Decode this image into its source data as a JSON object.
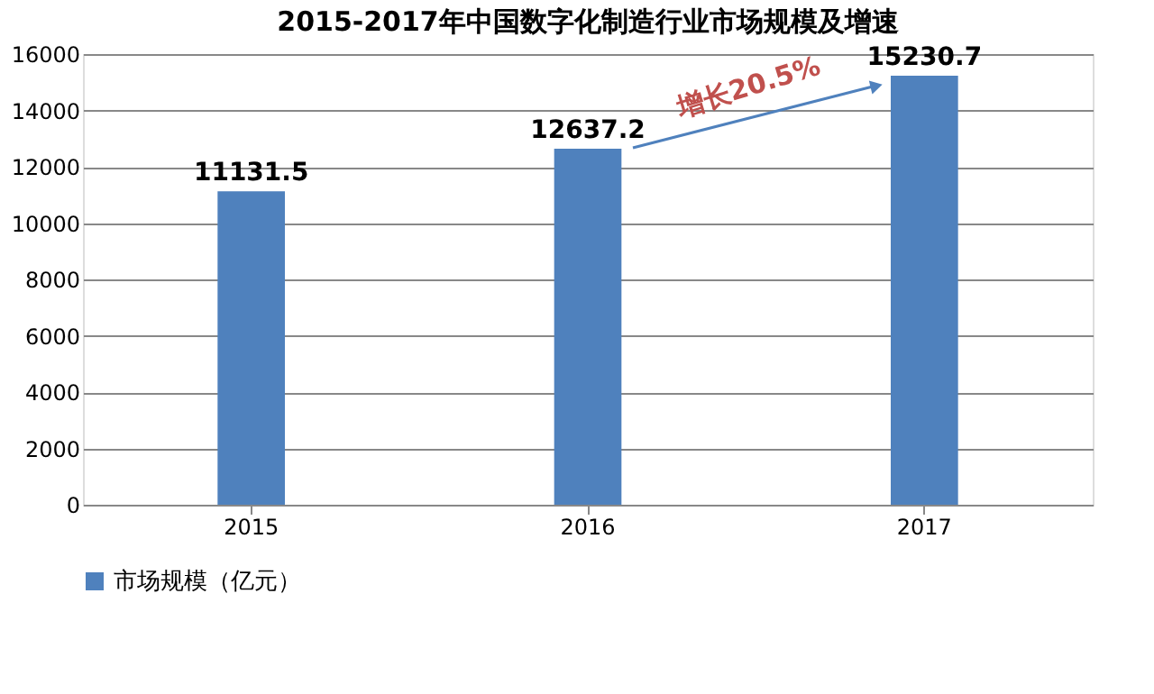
{
  "chart_data": {
    "type": "bar",
    "title": "2015-2017年中国数字化制造行业市场规模及增速",
    "categories": [
      "2015",
      "2016",
      "2017"
    ],
    "series": [
      {
        "name": "市场规模（亿元）",
        "color": "#4f81bd",
        "values": [
          11131.5,
          12637.2,
          15230.7
        ]
      }
    ],
    "ylim": [
      0,
      16000
    ],
    "yticks": [
      0,
      2000,
      4000,
      6000,
      8000,
      10000,
      12000,
      14000,
      16000
    ],
    "grid": "y",
    "legend": "bottom",
    "data_labels": true,
    "annotations": [
      "增长20.5%"
    ]
  }
}
